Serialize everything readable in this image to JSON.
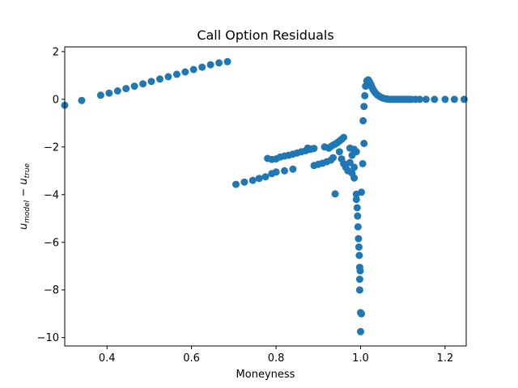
{
  "chart_data": {
    "type": "scatter",
    "title": "Call Option Residuals",
    "xlabel": "Moneyness",
    "ylabel_main": "u",
    "ylabel_sub1": "model",
    "ylabel_minus": " − ",
    "ylabel_sub2": "true",
    "xlim": [
      0.3,
      1.25
    ],
    "ylim": [
      -10.35,
      2.2
    ],
    "xticks": [
      0.4,
      0.6,
      0.8,
      1.0,
      1.2
    ],
    "xtick_labels": [
      "0.4",
      "0.6",
      "0.8",
      "1.0",
      "1.2"
    ],
    "yticks": [
      2,
      0,
      -2,
      -4,
      -6,
      -8,
      -10
    ],
    "ytick_labels": [
      "2",
      "0",
      "−2",
      "−4",
      "−6",
      "−8",
      "−10"
    ],
    "marker_color": "#1f77b4",
    "grid": false,
    "legend": "none",
    "series": [
      {
        "points": [
          [
            0.3,
            -0.25
          ],
          [
            0.34,
            -0.05
          ],
          [
            0.385,
            0.17
          ],
          [
            0.405,
            0.26
          ],
          [
            0.425,
            0.35
          ],
          [
            0.445,
            0.45
          ],
          [
            0.465,
            0.55
          ],
          [
            0.485,
            0.65
          ],
          [
            0.505,
            0.75
          ],
          [
            0.525,
            0.85
          ],
          [
            0.545,
            0.95
          ],
          [
            0.565,
            1.05
          ],
          [
            0.585,
            1.15
          ],
          [
            0.605,
            1.25
          ],
          [
            0.625,
            1.35
          ],
          [
            0.645,
            1.45
          ],
          [
            0.665,
            1.53
          ],
          [
            0.685,
            1.58
          ],
          [
            0.705,
            -3.57
          ],
          [
            0.725,
            -3.47
          ],
          [
            0.745,
            -3.4
          ],
          [
            0.76,
            -3.32
          ],
          [
            0.775,
            -3.25
          ],
          [
            0.79,
            -3.12
          ],
          [
            0.8,
            -3.05
          ],
          [
            0.82,
            -3.0
          ],
          [
            0.84,
            -2.93
          ],
          [
            0.78,
            -2.48
          ],
          [
            0.79,
            -2.52
          ],
          [
            0.8,
            -2.5
          ],
          [
            0.81,
            -2.42
          ],
          [
            0.82,
            -2.38
          ],
          [
            0.83,
            -2.35
          ],
          [
            0.84,
            -2.3
          ],
          [
            0.85,
            -2.25
          ],
          [
            0.86,
            -2.2
          ],
          [
            0.87,
            -2.16
          ],
          [
            0.88,
            -2.1
          ],
          [
            0.89,
            -2.06
          ],
          [
            0.875,
            -2.05
          ],
          [
            0.885,
            -2.08
          ],
          [
            0.89,
            -2.78
          ],
          [
            0.9,
            -2.73
          ],
          [
            0.91,
            -2.68
          ],
          [
            0.92,
            -2.62
          ],
          [
            0.93,
            -2.55
          ],
          [
            0.935,
            -2.45
          ],
          [
            0.915,
            -2.0
          ],
          [
            0.925,
            -2.05
          ],
          [
            0.93,
            -1.98
          ],
          [
            0.935,
            -1.92
          ],
          [
            0.94,
            -1.88
          ],
          [
            0.945,
            -1.82
          ],
          [
            0.95,
            -1.75
          ],
          [
            0.955,
            -1.68
          ],
          [
            0.96,
            -1.6
          ],
          [
            0.95,
            -2.2
          ],
          [
            0.955,
            -2.5
          ],
          [
            0.96,
            -2.7
          ],
          [
            0.965,
            -2.85
          ],
          [
            0.97,
            -3.0
          ],
          [
            0.975,
            -2.65
          ],
          [
            0.98,
            -2.35
          ],
          [
            0.975,
            -2.05
          ],
          [
            0.985,
            -2.1
          ],
          [
            0.98,
            -3.1
          ],
          [
            0.985,
            -3.3
          ],
          [
            0.94,
            -3.97
          ],
          [
            0.99,
            -2.2
          ],
          [
            0.985,
            -2.85
          ],
          [
            0.99,
            -3.98
          ],
          [
            0.99,
            -4.2
          ],
          [
            0.992,
            -4.55
          ],
          [
            0.993,
            -4.9
          ],
          [
            0.994,
            -5.35
          ],
          [
            0.995,
            -5.85
          ],
          [
            0.996,
            -6.2
          ],
          [
            0.997,
            -6.55
          ],
          [
            0.998,
            -7.05
          ],
          [
            0.999,
            -7.2
          ],
          [
            0.998,
            -7.55
          ],
          [
            0.998,
            -8.0
          ],
          [
            1.0,
            -8.95
          ],
          [
            1.002,
            -9.0
          ],
          [
            1.0,
            -9.75
          ],
          [
            1.002,
            -3.9
          ],
          [
            1.005,
            -2.7
          ],
          [
            1.008,
            -1.85
          ],
          [
            1.006,
            -0.9
          ],
          [
            1.008,
            -0.3
          ],
          [
            1.01,
            0.15
          ],
          [
            1.012,
            0.55
          ],
          [
            1.015,
            0.78
          ],
          [
            1.018,
            0.82
          ],
          [
            1.02,
            0.78
          ],
          [
            1.022,
            0.7
          ],
          [
            1.025,
            0.6
          ],
          [
            1.027,
            0.5
          ],
          [
            1.03,
            0.4
          ],
          [
            1.033,
            0.32
          ],
          [
            1.036,
            0.25
          ],
          [
            1.04,
            0.18
          ],
          [
            1.045,
            0.12
          ],
          [
            1.05,
            0.07
          ],
          [
            1.055,
            0.04
          ],
          [
            1.06,
            0.02
          ],
          [
            1.065,
            0.01
          ],
          [
            1.07,
            0.0
          ],
          [
            1.075,
            0.0
          ],
          [
            1.08,
            0.0
          ],
          [
            1.085,
            0.0
          ],
          [
            1.09,
            0.0
          ],
          [
            1.095,
            0.0
          ],
          [
            1.1,
            0.0
          ],
          [
            1.105,
            0.0
          ],
          [
            1.11,
            0.0
          ],
          [
            1.115,
            0.0
          ],
          [
            1.12,
            0.0
          ],
          [
            1.13,
            0.0
          ],
          [
            1.14,
            0.0
          ],
          [
            1.155,
            0.0
          ],
          [
            1.175,
            0.0
          ],
          [
            1.2,
            0.0
          ],
          [
            1.222,
            0.0
          ],
          [
            1.245,
            0.0
          ]
        ]
      }
    ]
  }
}
